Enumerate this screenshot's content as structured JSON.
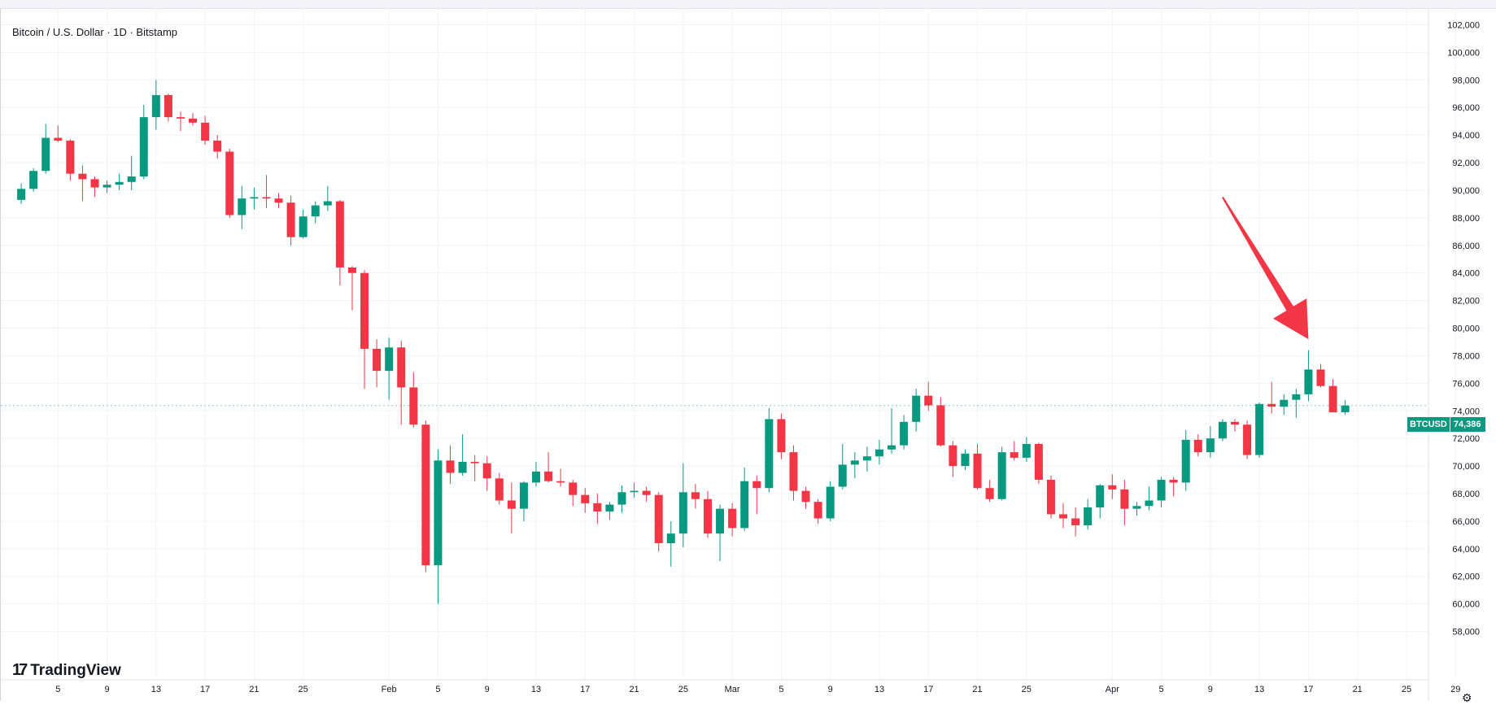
{
  "header": {
    "legend": "Bitcoin / U.S. Dollar · 1D · Bitstamp"
  },
  "branding": {
    "logo_text": "TradingView",
    "logo_mark": "17"
  },
  "price_badge": {
    "symbol": "BTCUSD",
    "value": "74,386",
    "color": "#089981"
  },
  "colors": {
    "up": "#089981",
    "down": "#f23645",
    "grid": "#f0f3fa",
    "arrow": "#f23645"
  },
  "icons": {
    "settings": "gear-icon"
  },
  "chart_data": {
    "type": "candlestick",
    "title": "Bitcoin / U.S. Dollar · 1D · Bitstamp",
    "ylim": [
      56500,
      102500
    ],
    "yticks": [
      58000,
      60000,
      62000,
      64000,
      66000,
      68000,
      70000,
      72000,
      74000,
      76000,
      78000,
      80000,
      82000,
      84000,
      86000,
      88000,
      90000,
      92000,
      94000,
      96000,
      98000,
      100000,
      102000
    ],
    "ytick_labels": [
      "58,000",
      "60,000",
      "62,000",
      "64,000",
      "66,000",
      "68,000",
      "70,000",
      "72,000",
      "74,000",
      "76,000",
      "78,000",
      "80,000",
      "82,000",
      "84,000",
      "86,000",
      "88,000",
      "90,000",
      "92,000",
      "94,000",
      "96,000",
      "98,000",
      "100,000",
      "102,000"
    ],
    "x_start": "2026-01-01",
    "xtick_labels": [
      {
        "date": "2026-01-05",
        "label": "5"
      },
      {
        "date": "2026-01-09",
        "label": "9"
      },
      {
        "date": "2026-01-13",
        "label": "13"
      },
      {
        "date": "2026-01-17",
        "label": "17"
      },
      {
        "date": "2026-01-21",
        "label": "21"
      },
      {
        "date": "2026-01-25",
        "label": "25"
      },
      {
        "date": "2026-02-01",
        "label": "Feb"
      },
      {
        "date": "2026-02-05",
        "label": "5"
      },
      {
        "date": "2026-02-09",
        "label": "9"
      },
      {
        "date": "2026-02-13",
        "label": "13"
      },
      {
        "date": "2026-02-17",
        "label": "17"
      },
      {
        "date": "2026-02-21",
        "label": "21"
      },
      {
        "date": "2026-02-25",
        "label": "25"
      },
      {
        "date": "2026-03-01",
        "label": "Mar"
      },
      {
        "date": "2026-03-05",
        "label": "5"
      },
      {
        "date": "2026-03-09",
        "label": "9"
      },
      {
        "date": "2026-03-13",
        "label": "13"
      },
      {
        "date": "2026-03-17",
        "label": "17"
      },
      {
        "date": "2026-03-21",
        "label": "21"
      },
      {
        "date": "2026-03-25",
        "label": "25"
      },
      {
        "date": "2026-04-01",
        "label": "Apr"
      },
      {
        "date": "2026-04-05",
        "label": "5"
      },
      {
        "date": "2026-04-09",
        "label": "9"
      },
      {
        "date": "2026-04-13",
        "label": "13"
      },
      {
        "date": "2026-04-17",
        "label": "17"
      },
      {
        "date": "2026-04-21",
        "label": "21"
      },
      {
        "date": "2026-04-25",
        "label": "25"
      },
      {
        "date": "2026-04-29",
        "label": "29"
      }
    ],
    "candles": [
      {
        "date": "2026-01-02",
        "o": 89300,
        "h": 90500,
        "l": 89000,
        "c": 90100
      },
      {
        "date": "2026-01-03",
        "o": 90100,
        "h": 91600,
        "l": 89900,
        "c": 91400
      },
      {
        "date": "2026-01-04",
        "o": 91400,
        "h": 94800,
        "l": 91200,
        "c": 93800
      },
      {
        "date": "2026-01-05",
        "o": 93800,
        "h": 94700,
        "l": 93500,
        "c": 93600
      },
      {
        "date": "2026-01-06",
        "o": 93600,
        "h": 93700,
        "l": 90700,
        "c": 91200
      },
      {
        "date": "2026-01-07",
        "o": 91200,
        "h": 91800,
        "l": 89200,
        "c": 90800
      },
      {
        "date": "2026-01-08",
        "o": 90800,
        "h": 91000,
        "l": 89500,
        "c": 90200
      },
      {
        "date": "2026-01-09",
        "o": 90200,
        "h": 90700,
        "l": 89800,
        "c": 90400
      },
      {
        "date": "2026-01-10",
        "o": 90400,
        "h": 91200,
        "l": 90000,
        "c": 90600
      },
      {
        "date": "2026-01-11",
        "o": 90600,
        "h": 92500,
        "l": 90000,
        "c": 91000
      },
      {
        "date": "2026-01-12",
        "o": 91000,
        "h": 96200,
        "l": 90800,
        "c": 95300
      },
      {
        "date": "2026-01-13",
        "o": 95300,
        "h": 98000,
        "l": 94400,
        "c": 96900
      },
      {
        "date": "2026-01-14",
        "o": 96900,
        "h": 97000,
        "l": 95000,
        "c": 95300
      },
      {
        "date": "2026-01-15",
        "o": 95300,
        "h": 95700,
        "l": 94300,
        "c": 95200
      },
      {
        "date": "2026-01-16",
        "o": 95200,
        "h": 95600,
        "l": 94700,
        "c": 94900
      },
      {
        "date": "2026-01-17",
        "o": 94900,
        "h": 95400,
        "l": 93300,
        "c": 93600
      },
      {
        "date": "2026-01-18",
        "o": 93600,
        "h": 94000,
        "l": 92300,
        "c": 92800
      },
      {
        "date": "2026-01-19",
        "o": 92800,
        "h": 93000,
        "l": 88000,
        "c": 88200
      },
      {
        "date": "2026-01-20",
        "o": 88200,
        "h": 90300,
        "l": 87200,
        "c": 89400
      },
      {
        "date": "2026-01-21",
        "o": 89400,
        "h": 90200,
        "l": 88600,
        "c": 89500
      },
      {
        "date": "2026-01-22",
        "o": 89500,
        "h": 91100,
        "l": 88700,
        "c": 89400
      },
      {
        "date": "2026-01-23",
        "o": 89400,
        "h": 89800,
        "l": 88700,
        "c": 89100
      },
      {
        "date": "2026-01-24",
        "o": 89100,
        "h": 89600,
        "l": 86000,
        "c": 86600
      },
      {
        "date": "2026-01-25",
        "o": 86600,
        "h": 88600,
        "l": 86500,
        "c": 88100
      },
      {
        "date": "2026-01-26",
        "o": 88100,
        "h": 89200,
        "l": 87600,
        "c": 88900
      },
      {
        "date": "2026-01-27",
        "o": 88900,
        "h": 90300,
        "l": 88500,
        "c": 89200
      },
      {
        "date": "2026-01-28",
        "o": 89200,
        "h": 89300,
        "l": 83100,
        "c": 84400
      },
      {
        "date": "2026-01-29",
        "o": 84400,
        "h": 84500,
        "l": 81300,
        "c": 84000
      },
      {
        "date": "2026-01-30",
        "o": 84000,
        "h": 84200,
        "l": 75600,
        "c": 78500
      },
      {
        "date": "2026-01-31",
        "o": 78500,
        "h": 79200,
        "l": 75700,
        "c": 76900
      },
      {
        "date": "2026-02-01",
        "o": 76900,
        "h": 79300,
        "l": 74800,
        "c": 78600
      },
      {
        "date": "2026-02-02",
        "o": 78600,
        "h": 79100,
        "l": 73000,
        "c": 75700
      },
      {
        "date": "2026-02-03",
        "o": 75700,
        "h": 76800,
        "l": 72800,
        "c": 73000
      },
      {
        "date": "2026-02-04",
        "o": 73000,
        "h": 73300,
        "l": 62300,
        "c": 62800
      },
      {
        "date": "2026-02-05",
        "o": 62800,
        "h": 71200,
        "l": 60000,
        "c": 70400
      },
      {
        "date": "2026-02-06",
        "o": 70400,
        "h": 71500,
        "l": 68700,
        "c": 69500
      },
      {
        "date": "2026-02-07",
        "o": 69500,
        "h": 72300,
        "l": 69300,
        "c": 70300
      },
      {
        "date": "2026-02-08",
        "o": 70300,
        "h": 70800,
        "l": 68900,
        "c": 70200
      },
      {
        "date": "2026-02-09",
        "o": 70200,
        "h": 70700,
        "l": 68200,
        "c": 69100
      },
      {
        "date": "2026-02-10",
        "o": 69100,
        "h": 69500,
        "l": 67200,
        "c": 67500
      },
      {
        "date": "2026-02-11",
        "o": 67500,
        "h": 68800,
        "l": 65100,
        "c": 66900
      },
      {
        "date": "2026-02-12",
        "o": 66900,
        "h": 68900,
        "l": 66000,
        "c": 68800
      },
      {
        "date": "2026-02-13",
        "o": 68800,
        "h": 70300,
        "l": 68500,
        "c": 69600
      },
      {
        "date": "2026-02-14",
        "o": 69600,
        "h": 71000,
        "l": 68800,
        "c": 68900
      },
      {
        "date": "2026-02-15",
        "o": 68900,
        "h": 69800,
        "l": 68500,
        "c": 68800
      },
      {
        "date": "2026-02-16",
        "o": 68800,
        "h": 69000,
        "l": 67100,
        "c": 67900
      },
      {
        "date": "2026-02-17",
        "o": 67900,
        "h": 68400,
        "l": 66600,
        "c": 67300
      },
      {
        "date": "2026-02-18",
        "o": 67300,
        "h": 68000,
        "l": 65800,
        "c": 66700
      },
      {
        "date": "2026-02-19",
        "o": 66700,
        "h": 67400,
        "l": 66100,
        "c": 67200
      },
      {
        "date": "2026-02-20",
        "o": 67200,
        "h": 68600,
        "l": 66600,
        "c": 68100
      },
      {
        "date": "2026-02-21",
        "o": 68100,
        "h": 68800,
        "l": 67700,
        "c": 68200
      },
      {
        "date": "2026-02-22",
        "o": 68200,
        "h": 68500,
        "l": 67400,
        "c": 67900
      },
      {
        "date": "2026-02-23",
        "o": 67900,
        "h": 68100,
        "l": 63800,
        "c": 64400
      },
      {
        "date": "2026-02-24",
        "o": 64400,
        "h": 66000,
        "l": 62700,
        "c": 65100
      },
      {
        "date": "2026-02-25",
        "o": 65100,
        "h": 70200,
        "l": 64100,
        "c": 68100
      },
      {
        "date": "2026-02-26",
        "o": 68100,
        "h": 68700,
        "l": 66900,
        "c": 67600
      },
      {
        "date": "2026-02-27",
        "o": 67600,
        "h": 68200,
        "l": 64800,
        "c": 65100
      },
      {
        "date": "2026-02-28",
        "o": 65100,
        "h": 67200,
        "l": 63100,
        "c": 66900
      },
      {
        "date": "2026-03-01",
        "o": 66900,
        "h": 67300,
        "l": 64900,
        "c": 65500
      },
      {
        "date": "2026-03-02",
        "o": 65500,
        "h": 69900,
        "l": 65300,
        "c": 68900
      },
      {
        "date": "2026-03-03",
        "o": 68900,
        "h": 69300,
        "l": 66500,
        "c": 68400
      },
      {
        "date": "2026-03-04",
        "o": 68400,
        "h": 74200,
        "l": 68100,
        "c": 73400
      },
      {
        "date": "2026-03-05",
        "o": 73400,
        "h": 73800,
        "l": 70500,
        "c": 71000
      },
      {
        "date": "2026-03-06",
        "o": 71000,
        "h": 71500,
        "l": 67500,
        "c": 68200
      },
      {
        "date": "2026-03-07",
        "o": 68200,
        "h": 68500,
        "l": 66900,
        "c": 67400
      },
      {
        "date": "2026-03-08",
        "o": 67400,
        "h": 67600,
        "l": 65800,
        "c": 66200
      },
      {
        "date": "2026-03-09",
        "o": 66200,
        "h": 68900,
        "l": 66000,
        "c": 68500
      },
      {
        "date": "2026-03-10",
        "o": 68500,
        "h": 71600,
        "l": 68300,
        "c": 70100
      },
      {
        "date": "2026-03-11",
        "o": 70100,
        "h": 71000,
        "l": 69100,
        "c": 70400
      },
      {
        "date": "2026-03-12",
        "o": 70400,
        "h": 71400,
        "l": 69600,
        "c": 70700
      },
      {
        "date": "2026-03-13",
        "o": 70700,
        "h": 71900,
        "l": 70100,
        "c": 71200
      },
      {
        "date": "2026-03-14",
        "o": 71200,
        "h": 74200,
        "l": 70900,
        "c": 71500
      },
      {
        "date": "2026-03-15",
        "o": 71500,
        "h": 73700,
        "l": 71200,
        "c": 73200
      },
      {
        "date": "2026-03-16",
        "o": 73200,
        "h": 75600,
        "l": 72500,
        "c": 75100
      },
      {
        "date": "2026-03-17",
        "o": 75100,
        "h": 76100,
        "l": 74000,
        "c": 74400
      },
      {
        "date": "2026-03-18",
        "o": 74400,
        "h": 75000,
        "l": 71400,
        "c": 71500
      },
      {
        "date": "2026-03-19",
        "o": 71500,
        "h": 71800,
        "l": 69200,
        "c": 70000
      },
      {
        "date": "2026-03-20",
        "o": 70000,
        "h": 71200,
        "l": 69700,
        "c": 70900
      },
      {
        "date": "2026-03-21",
        "o": 70900,
        "h": 71600,
        "l": 68300,
        "c": 68400
      },
      {
        "date": "2026-03-22",
        "o": 68400,
        "h": 69000,
        "l": 67400,
        "c": 67600
      },
      {
        "date": "2026-03-23",
        "o": 67600,
        "h": 71400,
        "l": 67500,
        "c": 71000
      },
      {
        "date": "2026-03-24",
        "o": 71000,
        "h": 71800,
        "l": 70400,
        "c": 70600
      },
      {
        "date": "2026-03-25",
        "o": 70600,
        "h": 72100,
        "l": 70300,
        "c": 71600
      },
      {
        "date": "2026-03-26",
        "o": 71600,
        "h": 71700,
        "l": 68700,
        "c": 69000
      },
      {
        "date": "2026-03-27",
        "o": 69000,
        "h": 69300,
        "l": 66200,
        "c": 66500
      },
      {
        "date": "2026-03-28",
        "o": 66500,
        "h": 67300,
        "l": 65500,
        "c": 66200
      },
      {
        "date": "2026-03-29",
        "o": 66200,
        "h": 67000,
        "l": 64900,
        "c": 65700
      },
      {
        "date": "2026-03-30",
        "o": 65700,
        "h": 67600,
        "l": 65400,
        "c": 67000
      },
      {
        "date": "2026-03-31",
        "o": 67000,
        "h": 68700,
        "l": 66200,
        "c": 68600
      },
      {
        "date": "2026-04-01",
        "o": 68600,
        "h": 69400,
        "l": 67600,
        "c": 68300
      },
      {
        "date": "2026-04-02",
        "o": 68300,
        "h": 69000,
        "l": 65700,
        "c": 66900
      },
      {
        "date": "2026-04-03",
        "o": 66900,
        "h": 67400,
        "l": 66400,
        "c": 67100
      },
      {
        "date": "2026-04-04",
        "o": 67100,
        "h": 68500,
        "l": 66800,
        "c": 67500
      },
      {
        "date": "2026-04-05",
        "o": 67500,
        "h": 69200,
        "l": 67000,
        "c": 69000
      },
      {
        "date": "2026-04-06",
        "o": 69000,
        "h": 69200,
        "l": 67800,
        "c": 68800
      },
      {
        "date": "2026-04-07",
        "o": 68800,
        "h": 72600,
        "l": 68200,
        "c": 71900
      },
      {
        "date": "2026-04-08",
        "o": 71900,
        "h": 72300,
        "l": 70700,
        "c": 71000
      },
      {
        "date": "2026-04-09",
        "o": 71000,
        "h": 72900,
        "l": 70600,
        "c": 72000
      },
      {
        "date": "2026-04-10",
        "o": 72000,
        "h": 73400,
        "l": 71800,
        "c": 73200
      },
      {
        "date": "2026-04-11",
        "o": 73200,
        "h": 73400,
        "l": 72500,
        "c": 73000
      },
      {
        "date": "2026-04-12",
        "o": 73000,
        "h": 73300,
        "l": 70500,
        "c": 70800
      },
      {
        "date": "2026-04-13",
        "o": 70800,
        "h": 74600,
        "l": 70600,
        "c": 74500
      },
      {
        "date": "2026-04-14",
        "o": 74500,
        "h": 76100,
        "l": 73800,
        "c": 74300
      },
      {
        "date": "2026-04-15",
        "o": 74300,
        "h": 75200,
        "l": 73700,
        "c": 74800
      },
      {
        "date": "2026-04-16",
        "o": 74800,
        "h": 75600,
        "l": 73500,
        "c": 75200
      },
      {
        "date": "2026-04-17",
        "o": 75200,
        "h": 78400,
        "l": 74700,
        "c": 77000
      },
      {
        "date": "2026-04-18",
        "o": 77000,
        "h": 77400,
        "l": 75700,
        "c": 75800
      },
      {
        "date": "2026-04-19",
        "o": 75800,
        "h": 76300,
        "l": 73900,
        "c": 73900
      },
      {
        "date": "2026-04-20",
        "o": 73900,
        "h": 74800,
        "l": 73700,
        "c": 74386
      }
    ],
    "annotation": {
      "type": "arrow",
      "from": {
        "date": "2026-04-10",
        "price": 89500
      },
      "to": {
        "date": "2026-04-17",
        "price": 79200
      }
    }
  }
}
